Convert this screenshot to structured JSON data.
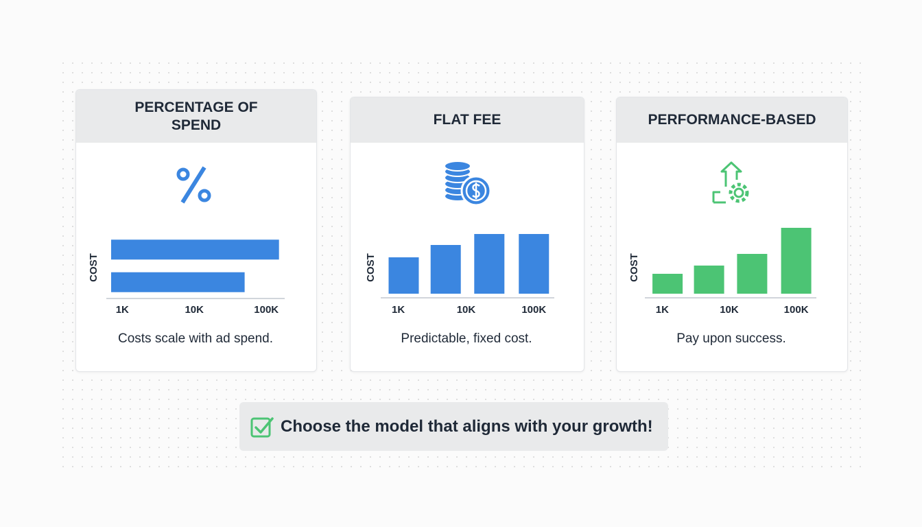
{
  "chart_data": [
    {
      "type": "hbar",
      "title": "PERCENTAGE OF SPEND",
      "ylabel": "COST",
      "caption": "Costs scale with ad spend.",
      "values": [
        150000,
        50000
      ],
      "color": "#3b86e0",
      "log_x": true,
      "xlim": [
        600,
        180000
      ],
      "xticks": [
        {
          "value": 1000,
          "label": "1K"
        },
        {
          "value": 10000,
          "label": "10K"
        },
        {
          "value": 100000,
          "label": "100K"
        }
      ]
    },
    {
      "type": "bar",
      "title": "FLAT FEE",
      "ylabel": "COST",
      "caption": "Predictable, fixed cost.",
      "x": [
        1200,
        5000,
        22000,
        100000
      ],
      "values": [
        53,
        71,
        87,
        87
      ],
      "color": "#3b86e0",
      "log_x": true,
      "xlim": [
        550,
        200000
      ],
      "ylim": [
        0,
        100
      ],
      "xticks": [
        {
          "value": 1000,
          "label": "1K"
        },
        {
          "value": 10000,
          "label": "10K"
        },
        {
          "value": 100000,
          "label": "100K"
        }
      ]
    },
    {
      "type": "bar",
      "title": "PERFORMANCE-BASED",
      "ylabel": "COST",
      "caption": "Pay upon success.",
      "x": [
        1200,
        5000,
        22000,
        100000
      ],
      "values": [
        29,
        41,
        58,
        96
      ],
      "color": "#4cc474",
      "log_x": true,
      "xlim": [
        550,
        200000
      ],
      "ylim": [
        0,
        100
      ],
      "xticks": [
        {
          "value": 1000,
          "label": "1K"
        },
        {
          "value": 10000,
          "label": "10K"
        },
        {
          "value": 100000,
          "label": "100K"
        }
      ]
    }
  ],
  "footer": {
    "text": "Choose the model that aligns with your growth!"
  }
}
